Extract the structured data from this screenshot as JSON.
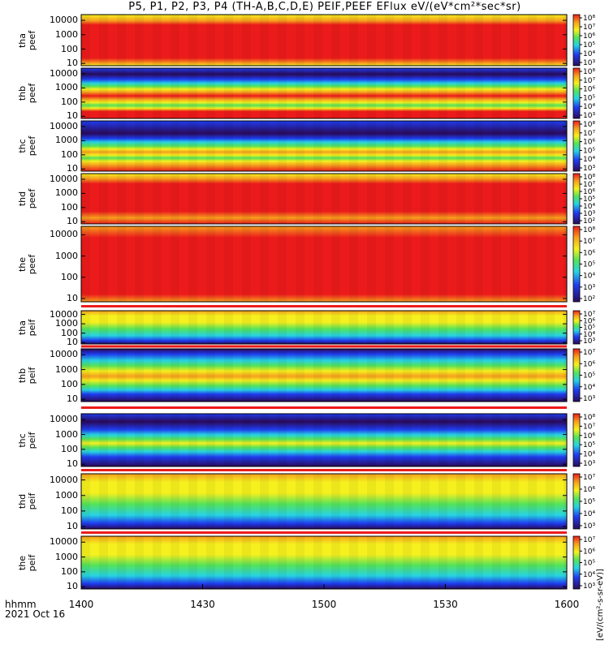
{
  "title": "P5, P1, P2, P3, P4 (TH-A,B,C,D,E) PEIF,PEEF EFlux eV/(eV*cm²*sec*sr)",
  "xaxis": {
    "unit_line1": "hhmm",
    "unit_line2": "2021 Oct 16",
    "ticks": [
      "1400",
      "1430",
      "1500",
      "1530",
      "1600"
    ]
  },
  "colorbar_title": "[eV/(cm²-s-sr-eV)]",
  "colors": {
    "dark_purple": "#2a0a5a",
    "blue": "#1f3cf0",
    "cyan": "#27d3e3",
    "green": "#55e35a",
    "yellow": "#f5f01e",
    "orange": "#f7a01e",
    "red": "#ec1b1b"
  },
  "chart_data": {
    "type": "heatmap",
    "x_range": [
      "1400",
      "1600"
    ],
    "y_scale": "log",
    "y_ticks": [
      "10",
      "100",
      "1000",
      "10000"
    ],
    "panels": [
      {
        "label_line1": "tha",
        "label_line2": "peef",
        "cbar_ticks": [
          "10⁸",
          "10⁷",
          "10⁶",
          "10⁵",
          "10⁴",
          "10³"
        ],
        "energy_range_eV": [
          7,
          25000
        ]
      },
      {
        "label_line1": "thb",
        "label_line2": "peef",
        "cbar_ticks": [
          "10⁸",
          "10⁷",
          "10⁶",
          "10⁵",
          "10⁴",
          "10³"
        ],
        "energy_range_eV": [
          7,
          25000
        ]
      },
      {
        "label_line1": "thc",
        "label_line2": "peef",
        "cbar_ticks": [
          "10⁸",
          "10⁷",
          "10⁶",
          "10⁵",
          "10⁴",
          "10³"
        ],
        "energy_range_eV": [
          7,
          25000
        ]
      },
      {
        "label_line1": "thd",
        "label_line2": "peef",
        "cbar_ticks": [
          "10⁸",
          "10⁷",
          "10⁶",
          "10⁵",
          "10⁴",
          "10³",
          "10²"
        ],
        "energy_range_eV": [
          7,
          25000
        ]
      },
      {
        "label_line1": "the",
        "label_line2": "peef",
        "cbar_ticks": [
          "10⁸",
          "10⁷",
          "10⁶",
          "10⁵",
          "10⁴",
          "10³",
          "10²"
        ],
        "energy_range_eV": [
          7,
          25000
        ]
      },
      {
        "label_line1": "tha",
        "label_line2": "peif",
        "cbar_ticks": [
          "10⁷",
          "10⁶",
          "10⁵",
          "10⁴",
          "10³"
        ],
        "energy_range_eV": [
          7,
          25000
        ]
      },
      {
        "label_line1": "thb",
        "label_line2": "peif",
        "cbar_ticks": [
          "10⁷",
          "10⁶",
          "10⁵",
          "10⁴",
          "10³"
        ],
        "energy_range_eV": [
          7,
          25000
        ]
      },
      {
        "label_line1": "thc",
        "label_line2": "peif",
        "cbar_ticks": [
          "10⁸",
          "10⁷",
          "10⁶",
          "10⁵",
          "10⁴",
          "10³"
        ],
        "energy_range_eV": [
          7,
          25000
        ]
      },
      {
        "label_line1": "thd",
        "label_line2": "peif",
        "cbar_ticks": [
          "10⁷",
          "10⁶",
          "10⁵",
          "10⁴",
          "10³"
        ],
        "energy_range_eV": [
          7,
          25000
        ]
      },
      {
        "label_line1": "the",
        "label_line2": "peif",
        "cbar_ticks": [
          "10⁷",
          "10⁶",
          "10⁵",
          "10⁴",
          "10³"
        ],
        "energy_range_eV": [
          7,
          25000
        ]
      }
    ]
  }
}
